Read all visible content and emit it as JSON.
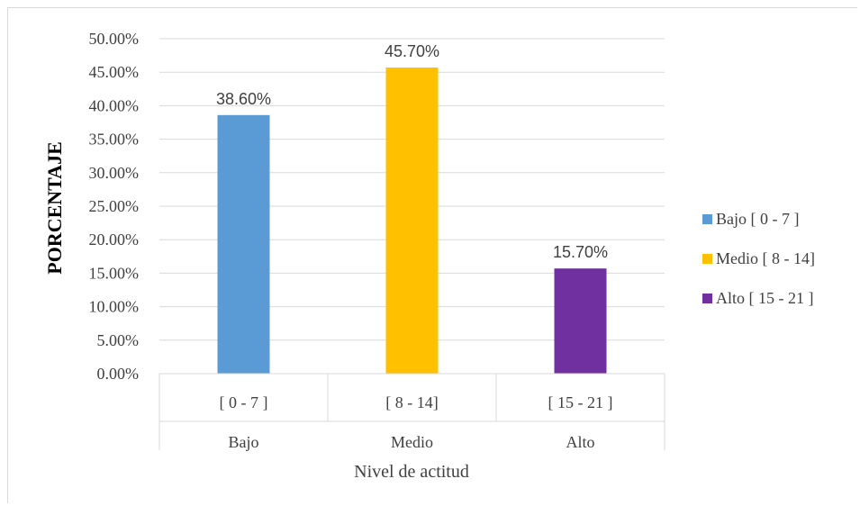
{
  "chart_data": {
    "type": "bar",
    "ylabel": "PORCENTAJE",
    "xlabel": "Nivel de actitud",
    "ylim": [
      0,
      0.5
    ],
    "ytick_step": 0.05,
    "yticks": [
      "0.00%",
      "5.00%",
      "10.00%",
      "15.00%",
      "20.00%",
      "25.00%",
      "30.00%",
      "35.00%",
      "40.00%",
      "45.00%",
      "50.00%"
    ],
    "categories": [
      {
        "range": "[ 0  - 7  ]",
        "group": "Bajo"
      },
      {
        "range": "[ 8 - 14]",
        "group": "Medio"
      },
      {
        "range": "[ 15 - 21 ]",
        "group": "Alto"
      }
    ],
    "values": [
      0.386,
      0.457,
      0.157
    ],
    "data_labels": [
      "38.60%",
      "45.70%",
      "15.70%"
    ],
    "colors": [
      "#5b9bd5",
      "#ffc000",
      "#7030a0"
    ],
    "legend": {
      "placement": "right",
      "entries": [
        "Bajo [ 0  - 7  ]",
        "Medio [ 8 - 14]",
        "Alto [ 15 - 21 ]"
      ]
    },
    "grid": true
  }
}
